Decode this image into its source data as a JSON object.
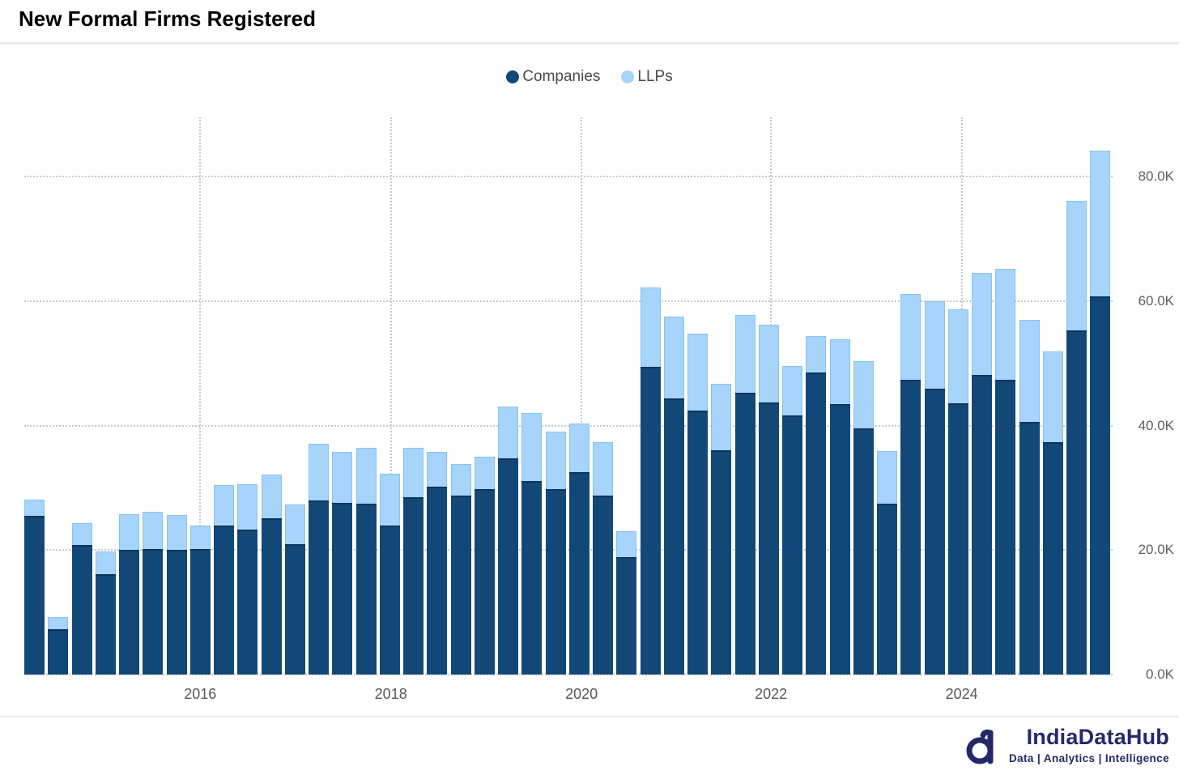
{
  "header": {
    "title": "New Formal Firms Registered"
  },
  "legend": [
    {
      "label": "Companies",
      "color": "#114878"
    },
    {
      "label": "LLPs",
      "color": "#A6D4FA"
    }
  ],
  "chart_data": {
    "type": "bar",
    "stacked": true,
    "title": "New Formal Firms Registered",
    "unit": "firms per quarter",
    "grid": "dotted",
    "legend_position": "top-center",
    "y_axis_side": "right",
    "ylim": [
      0,
      89000
    ],
    "x": [
      "2014-Q1",
      "2014-Q2",
      "2014-Q3",
      "2014-Q4",
      "2015-Q1",
      "2015-Q2",
      "2015-Q3",
      "2015-Q4",
      "2016-Q1",
      "2016-Q2",
      "2016-Q3",
      "2016-Q4",
      "2017-Q1",
      "2017-Q2",
      "2017-Q3",
      "2017-Q4",
      "2018-Q1",
      "2018-Q2",
      "2018-Q3",
      "2018-Q4",
      "2019-Q1",
      "2019-Q2",
      "2019-Q3",
      "2019-Q4",
      "2020-Q1",
      "2020-Q2",
      "2020-Q3",
      "2020-Q4",
      "2021-Q1",
      "2021-Q2",
      "2021-Q3",
      "2021-Q4",
      "2022-Q1",
      "2022-Q2",
      "2022-Q3",
      "2022-Q4",
      "2023-Q1",
      "2023-Q2",
      "2023-Q3",
      "2023-Q4",
      "2024-Q1",
      "2024-Q2",
      "2024-Q3",
      "2024-Q4",
      "2025-Q1",
      "2025-Q2"
    ],
    "series": [
      {
        "name": "Companies",
        "color": "#114878",
        "values": [
          25500,
          7300,
          20800,
          16100,
          20000,
          20100,
          20000,
          20200,
          24000,
          23300,
          25100,
          21000,
          28000,
          27600,
          27500,
          24000,
          28500,
          30200,
          28700,
          29800,
          34700,
          31100,
          29800,
          32500,
          28800,
          18900,
          49500,
          44400,
          42400,
          36100,
          45300,
          43700,
          41600,
          48500,
          43400,
          39600,
          27500,
          47300,
          45900,
          43600,
          48100,
          47300,
          40600,
          37300,
          55300,
          60800
        ]
      },
      {
        "name": "LLPs",
        "color": "#A6D4FA",
        "values": [
          2600,
          1900,
          3500,
          3700,
          5800,
          6000,
          5700,
          3800,
          6500,
          7300,
          7100,
          6300,
          9100,
          8200,
          9000,
          8300,
          8000,
          5600,
          5100,
          5200,
          8400,
          10900,
          9200,
          7800,
          8600,
          4100,
          12700,
          13100,
          12400,
          10600,
          12500,
          12500,
          8000,
          5900,
          10500,
          10700,
          8400,
          13800,
          14100,
          15100,
          16500,
          17900,
          16400,
          14600,
          20800,
          23400
        ]
      }
    ],
    "y_ticks": [
      {
        "value": 0,
        "label": "0.0K"
      },
      {
        "value": 20000,
        "label": "20.0K"
      },
      {
        "value": 40000,
        "label": "40.0K"
      },
      {
        "value": 60000,
        "label": "60.0K"
      },
      {
        "value": 80000,
        "label": "80.0K"
      }
    ],
    "x_ticks": [
      {
        "label": "2016",
        "bar_index": 7.0
      },
      {
        "label": "2018",
        "bar_index": 15.05
      },
      {
        "label": "2020",
        "bar_index": 23.1
      },
      {
        "label": "2022",
        "bar_index": 31.1
      },
      {
        "label": "2024",
        "bar_index": 39.15
      }
    ]
  },
  "footer": {
    "brand": "IndiaDataHub",
    "tagline": "Data | Analytics | Intelligence",
    "brand_color": "#232968"
  }
}
